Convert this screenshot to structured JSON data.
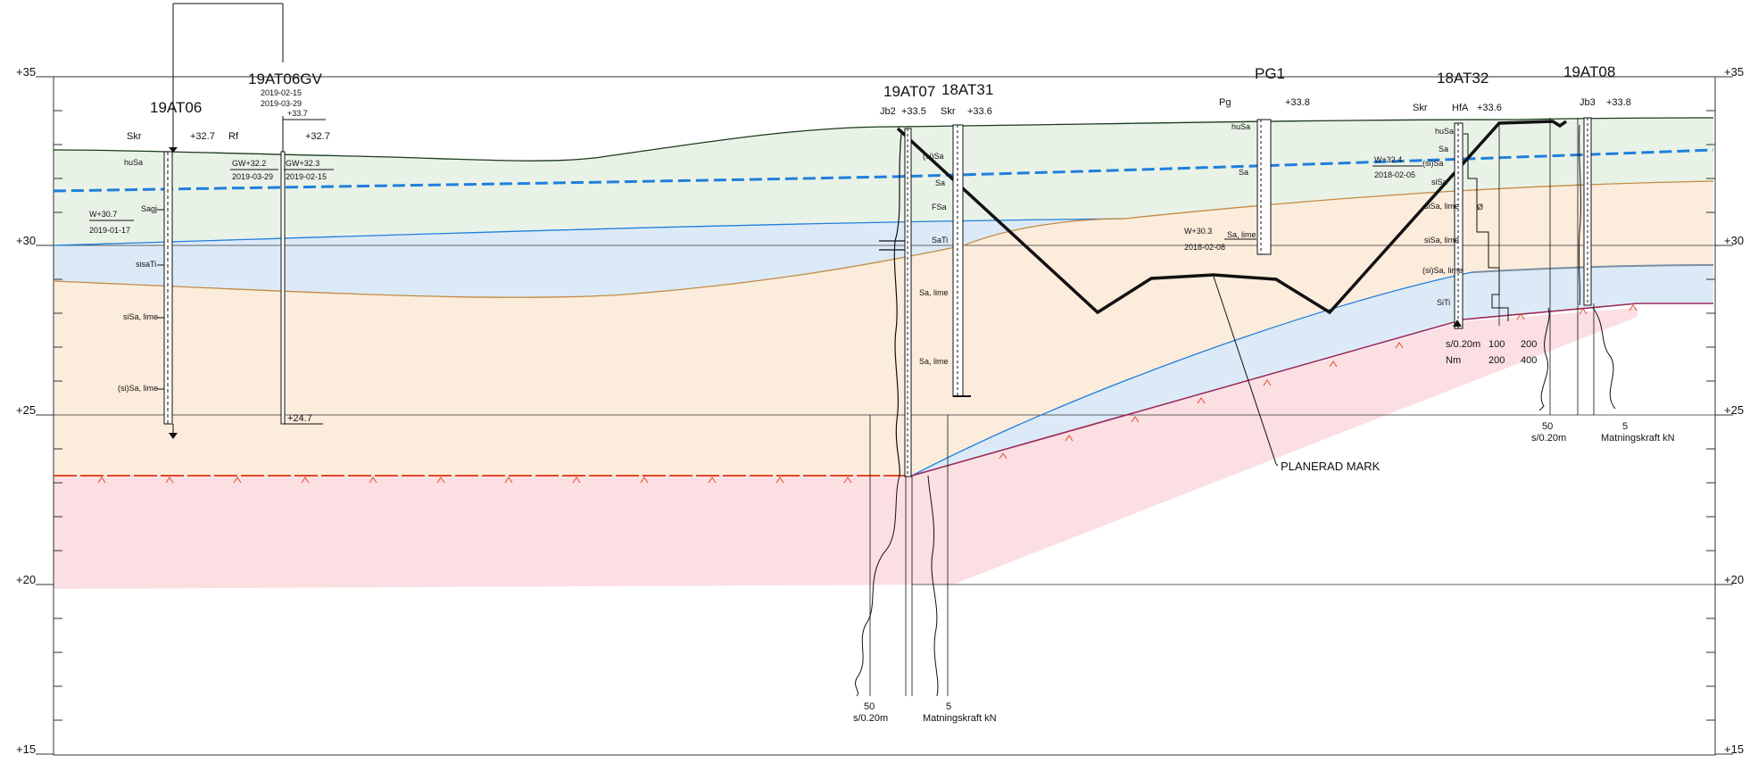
{
  "axis": {
    "elevations": [
      "+35",
      "+30",
      "+25",
      "+20",
      "+15"
    ]
  },
  "boreholes": [
    {
      "id": "19AT06",
      "method": "Skr",
      "level": "+32.7",
      "layers": [
        "huSa",
        "Sagj",
        "sisaTi",
        "siSa, lime",
        "(si)Sa, lime"
      ],
      "water": [
        "W+30.7",
        "2019-01-17"
      ]
    },
    {
      "id": "19AT06GV",
      "method": "Rf",
      "level": "+32.7",
      "top_level": "+33.7",
      "dates": [
        "2019-02-15",
        "2019-03-29"
      ],
      "gw_left": [
        "GW+32.2",
        "2019-03-29"
      ],
      "gw_right": [
        "GW+32.3",
        "2019-02-15"
      ],
      "bottom": "+24.7"
    },
    {
      "id": "19AT07",
      "method": "Jb2",
      "level": "+33.5",
      "plot": {
        "tick1": "50",
        "unit1": "s/0.20m",
        "tick2": "5",
        "unit2": "Matningskraft kN"
      }
    },
    {
      "id": "18AT31",
      "method": "Skr",
      "level": "+33.6",
      "layers": [
        "(si)Sa",
        "Sa",
        "FSa",
        "SaTi",
        "Sa, lime",
        "Sa, lime"
      ]
    },
    {
      "id": "PG1",
      "method": "Pg",
      "level": "+33.8",
      "layers": [
        "huSa",
        "Sa",
        "Sa, lime"
      ],
      "water": [
        "W+30.3",
        "2018-02-08"
      ]
    },
    {
      "id": "18AT32",
      "method": "Skr",
      "method2": "HfA",
      "level": "+33.6",
      "layers": [
        "huSa",
        "Sa",
        "(si)Sa",
        "siSa",
        "siSa, lime",
        "siSa, lime",
        "(si)Sa, lime",
        "SiTi"
      ],
      "water": [
        "W+32.4",
        "2018-02-05"
      ],
      "note": "Ø",
      "table": {
        "r1": [
          "s/0.20m",
          "100",
          "200"
        ],
        "r2": [
          "Nm",
          "200",
          "400"
        ]
      }
    },
    {
      "id": "19AT08",
      "method": "Jb3",
      "level": "+33.8",
      "plot": {
        "tick1": "50",
        "unit1": "s/0.20m",
        "tick2": "5",
        "unit2": "Matningskraft kN"
      }
    }
  ],
  "annotation": {
    "planned_grade": "PLANERAD MARK"
  },
  "colors": {
    "topsoil_layer": "#e9f2e7",
    "sand_layer": "#dceaf7",
    "silt_layer": "#fcecdc",
    "rock_layer": "#fbdfe2",
    "groundwater": "#1f7fdc",
    "rock_line": "#e04a27",
    "clay_line": "#c08b43",
    "silt_line": "#1f7fdc"
  }
}
